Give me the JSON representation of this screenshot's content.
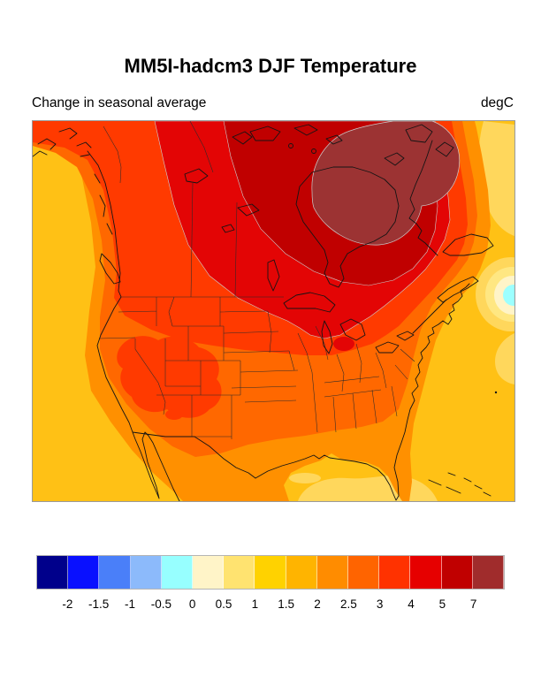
{
  "title": "MM5I-hadcm3 DJF Temperature",
  "subtitle_left": "Change in seasonal average",
  "units_label": "degC",
  "colorbar": {
    "colors": [
      "#00008B",
      "#0910FF",
      "#4A7FF9",
      "#8CBAFB",
      "#97FFFF",
      "#FFF4C8",
      "#FFE370",
      "#FFD200",
      "#FFB400",
      "#FF8C00",
      "#FF6400",
      "#FF3200",
      "#E60000",
      "#C00000",
      "#A02C2C"
    ],
    "tick_labels": [
      "-2",
      "-1.5",
      "-1",
      "-0.5",
      "0",
      "0.5",
      "1",
      "1.5",
      "2",
      "2.5",
      "3",
      "4",
      "5",
      "7"
    ]
  },
  "map": {
    "levels": {
      "ocean_gold": "#FFC115",
      "light_gold": "#FFD75C",
      "pale_gold": "#FFE782",
      "cream": "#FFF4C8",
      "cyan": "#9CFFFF",
      "orange": "#FF9000",
      "deep_orange": "#FF6800",
      "orange_red": "#FF3A00",
      "red": "#E30505",
      "dark_red": "#C00000",
      "brick": "#9C3333",
      "coast_line": "#141414",
      "border_line": "#2a2a2a",
      "contour_line": "#cccccc"
    }
  },
  "chart_data": {
    "type": "heatmap",
    "title": "MM5I-hadcm3 DJF Temperature",
    "subtitle": "Change in seasonal average",
    "units": "degC",
    "region": "North America (contiguous US, Canada, northern Mexico)",
    "legend_position": "bottom",
    "levels_degC": [
      -2,
      -1.5,
      -1,
      -0.5,
      0,
      0.5,
      1,
      1.5,
      2,
      2.5,
      3,
      4,
      5,
      7
    ],
    "palette": [
      "#00008B",
      "#0910FF",
      "#4A7FF9",
      "#8CBAFB",
      "#97FFFF",
      "#FFF4C8",
      "#FFE370",
      "#FFD200",
      "#FFB400",
      "#FF8C00",
      "#FF6400",
      "#FF3200",
      "#E60000",
      "#C00000",
      "#A02C2C"
    ],
    "regional_values": [
      {
        "region": "Hudson Bay and northeastern Arctic archipelago",
        "change_degC": "> 7"
      },
      {
        "region": "Central and eastern Canada (ring around Hudson Bay)",
        "change_degC": "5 to 7"
      },
      {
        "region": "Western and southern Canada, Quebec, Labrador",
        "change_degC": "4 to 5"
      },
      {
        "region": "Northern US border states, Great Lakes, New England",
        "change_degC": "3 to 4"
      },
      {
        "region": "Interior western US patches (Nevada, Utah, Colorado)",
        "change_degC": "3 to 4"
      },
      {
        "region": "Central US and interior West",
        "change_degC": "2.5 to 3"
      },
      {
        "region": "Southern US states and coasts",
        "change_degC": "2 to 2.5"
      },
      {
        "region": "Pacific and Atlantic oceans, Gulf of Mexico",
        "change_degC": "1.5 to 2"
      },
      {
        "region": "Patches of Gulf / SE Atlantic / Mexico",
        "change_degC": "1 to 1.5"
      },
      {
        "region": "Northwest Atlantic cold spot east of Nova Scotia (center)",
        "change_degC": "-0.5 to 0"
      }
    ]
  }
}
